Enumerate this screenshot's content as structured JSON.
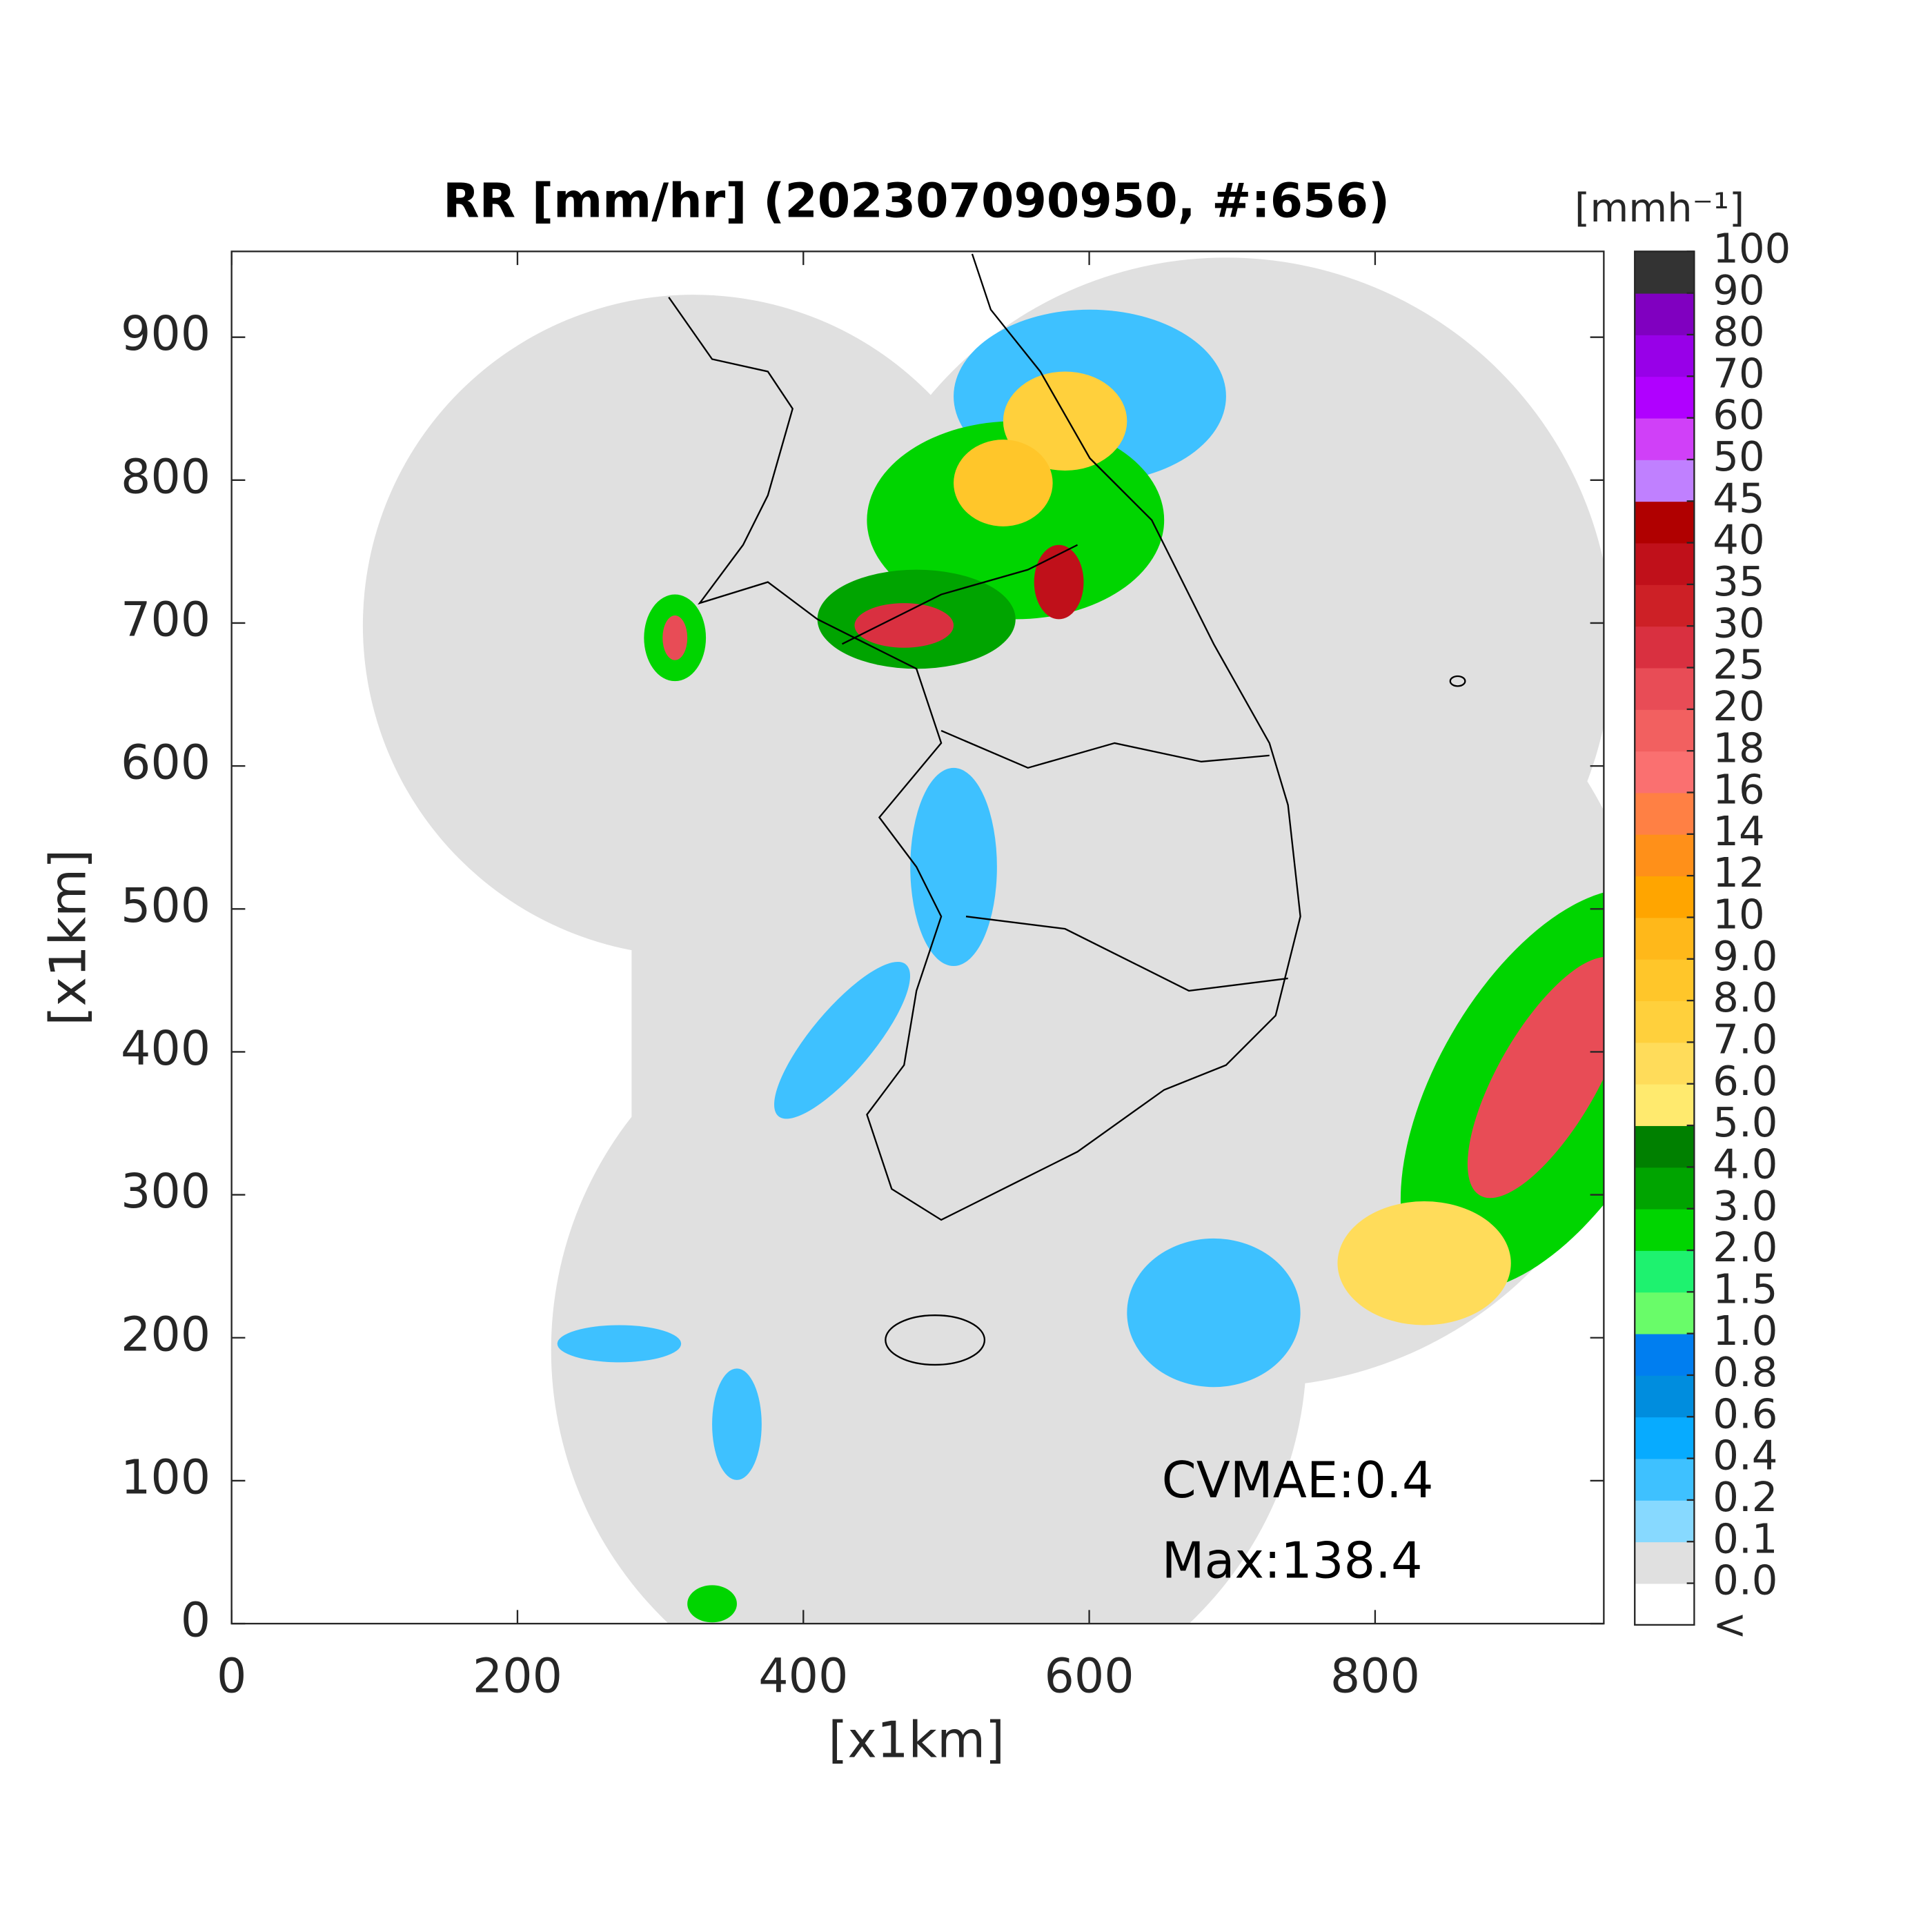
{
  "chart_data": {
    "type": "map",
    "title": "RR [mm/hr] (202307090950, #:656)",
    "xlabel": "[x1km]",
    "ylabel": "[x1km]",
    "xlim": [
      0,
      960
    ],
    "ylim": [
      0,
      960
    ],
    "xticks": [
      0,
      200,
      400,
      600,
      800
    ],
    "yticks": [
      0,
      100,
      200,
      300,
      400,
      500,
      600,
      700,
      800,
      900
    ],
    "annotations": [
      "CVMAE:0.4",
      "Max:138.4"
    ],
    "colorbar": {
      "title": "[mmh⁻¹]",
      "under_label": "<",
      "under_color": "#ffffff",
      "ticks": [
        {
          "value": 0,
          "label": "0.0"
        },
        0.1,
        0.2,
        0.4,
        0.6,
        0.8,
        {
          "value": 1,
          "label": "1.0"
        },
        1.5,
        {
          "value": 2,
          "label": "2.0"
        },
        {
          "value": 3,
          "label": "3.0"
        },
        {
          "value": 4,
          "label": "4.0"
        },
        {
          "value": 5,
          "label": "5.0"
        },
        {
          "value": 6,
          "label": "6.0"
        },
        {
          "value": 7,
          "label": "7.0"
        },
        {
          "value": 8,
          "label": "8.0"
        },
        {
          "value": 9,
          "label": "9.0"
        },
        10,
        12,
        14,
        16,
        18,
        20,
        25,
        30,
        35,
        40,
        45,
        50,
        60,
        70,
        80,
        90,
        100
      ],
      "colors": [
        "#e0e0e0",
        "#87d9ff",
        "#3ec1ff",
        "#07abff",
        "#008dde",
        "#007ef0",
        "#69fc69",
        "#1ef26f",
        "#00d500",
        "#00a400",
        "#008000",
        "#ffea6e",
        "#ffdc5a",
        "#ffd03c",
        "#ffc62a",
        "#ffb81a",
        "#ffa500",
        "#ff9019",
        "#ff8044",
        "#fa7070",
        "#f26060",
        "#e84c56",
        "#d93040",
        "#cd2026",
        "#c0101a",
        "#b00000",
        "#c080ff",
        "#d040f8",
        "#b000ff",
        "#9800e8",
        "#8000c0",
        "#333333"
      ]
    }
  }
}
